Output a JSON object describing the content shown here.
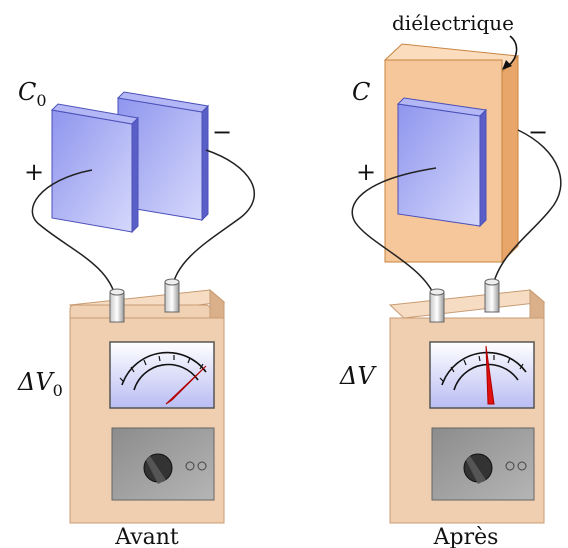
{
  "figure": {
    "left": {
      "capacitor_label_main": "C",
      "capacitor_label_sub": "0",
      "plus": "+",
      "minus": "−",
      "voltage_label_main": "ΔV",
      "voltage_label_sub": "0",
      "caption": "Avant",
      "needle_level": "high"
    },
    "right": {
      "capacitor_label": "C",
      "plus": "+",
      "minus": "−",
      "voltage_label": "ΔV",
      "caption": "Après",
      "dielectric_label": "diélectrique",
      "needle_level": "middle"
    }
  },
  "colors": {
    "plate": "#9a9ff0",
    "plate_edge": "#5a5fc8",
    "dielectric": "#f6c79a",
    "dielectric_edge": "#c8843f",
    "meter_body": "#f1d1b3",
    "meter_edge": "#c89b73",
    "meter_face": "#c9ccf5",
    "knob_panel": "#9a9a9a",
    "needle": "#e01010"
  }
}
